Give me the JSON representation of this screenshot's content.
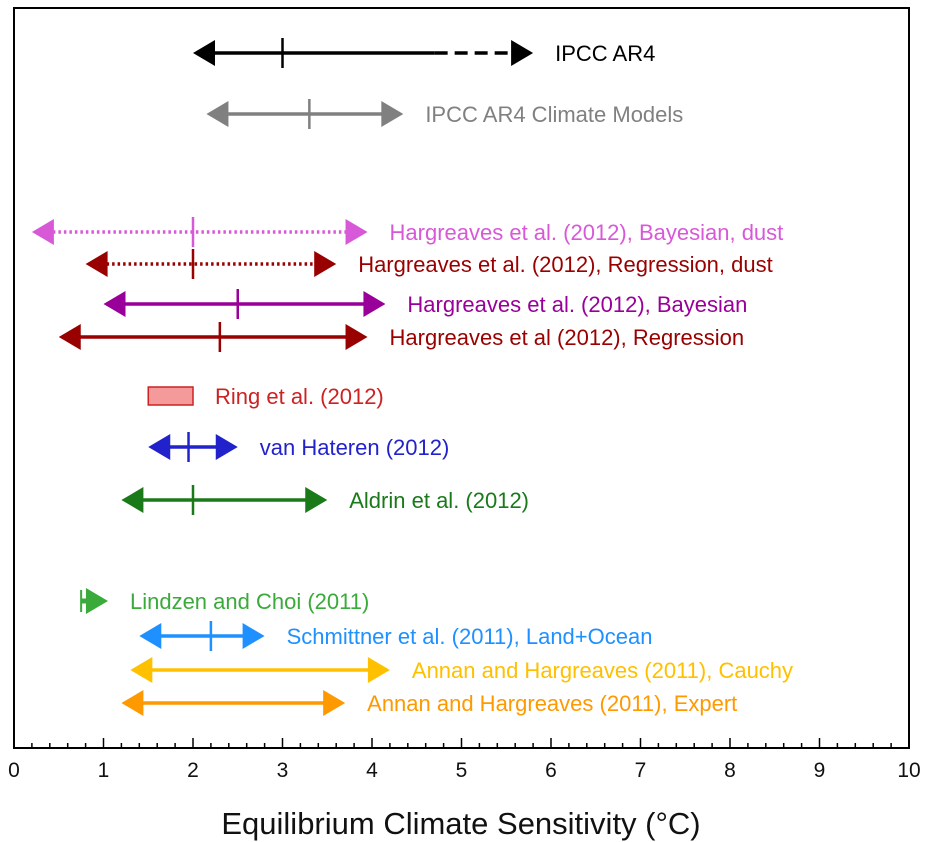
{
  "chart_data": {
    "type": "range",
    "xlabel": "Equilibrium Climate Sensitivity (°C)",
    "xlim": [
      0,
      10
    ],
    "x_ticks": [
      "0",
      "1",
      "2",
      "3",
      "4",
      "5",
      "6",
      "7",
      "8",
      "9",
      "10"
    ],
    "grid": false,
    "series": [
      {
        "name": "IPCC AR4",
        "color": "#000000",
        "low": 2.0,
        "high": 5.8,
        "best": 3.0,
        "dashed_from": 4.7,
        "style": "solid",
        "marker": "arrow"
      },
      {
        "name": "IPCC AR4 Climate Models",
        "color": "#808080",
        "low": 2.15,
        "high": 4.35,
        "best": 3.3,
        "style": "solid",
        "marker": "arrow"
      },
      {
        "name": "Hargreaves et al. (2012), Bayesian, dust",
        "color": "#d859d8",
        "low": 0.2,
        "high": 3.95,
        "best": 2.0,
        "style": "dotted",
        "marker": "arrow"
      },
      {
        "name": "Hargreaves et al. (2012), Regression, dust",
        "color": "#990000",
        "low": 0.8,
        "high": 3.6,
        "best": 2.0,
        "style": "dotted",
        "marker": "arrow"
      },
      {
        "name": "Hargreaves et al. (2012), Bayesian",
        "color": "#990099",
        "low": 1.0,
        "high": 4.15,
        "best": 2.5,
        "style": "solid",
        "marker": "arrow"
      },
      {
        "name": "Hargreaves et al (2012), Regression",
        "color": "#990000",
        "low": 0.5,
        "high": 3.95,
        "best": 2.3,
        "style": "solid",
        "marker": "arrow"
      },
      {
        "name": "Ring et al. (2012)",
        "color": "#cc2222",
        "fill": "#f59a9a",
        "low": 1.5,
        "high": 2.0,
        "style": "box",
        "marker": "box"
      },
      {
        "name": "van Hateren (2012)",
        "color": "#2222cc",
        "low": 1.5,
        "high": 2.5,
        "best": 1.95,
        "style": "solid",
        "marker": "arrow"
      },
      {
        "name": "Aldrin et al. (2012)",
        "color": "#1a7a1a",
        "low": 1.2,
        "high": 3.5,
        "best": 2.0,
        "style": "solid",
        "marker": "arrow"
      },
      {
        "name": "Lindzen and Choi  (2011)",
        "color": "#3aaa3a",
        "low": 0.75,
        "high": 1.05,
        "best": 0.75,
        "style": "solid",
        "marker": "arrow-right"
      },
      {
        "name": "Schmittner et al.  (2011), Land+Ocean",
        "color": "#1e90ff",
        "low": 1.4,
        "high": 2.8,
        "best": 2.2,
        "style": "solid",
        "marker": "arrow"
      },
      {
        "name": "Annan and Hargreaves (2011), Cauchy",
        "color": "#ffc000",
        "low": 1.3,
        "high": 4.2,
        "style": "solid",
        "marker": "arrow"
      },
      {
        "name": "Annan and Hargreaves (2011), Expert",
        "color": "#ff9900",
        "low": 1.2,
        "high": 3.7,
        "style": "solid",
        "marker": "arrow"
      }
    ]
  }
}
